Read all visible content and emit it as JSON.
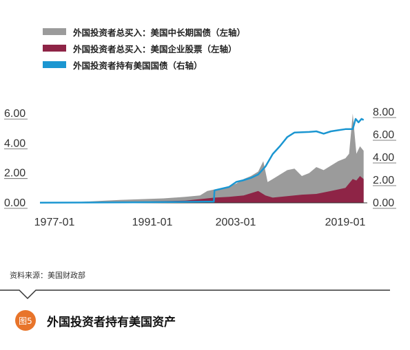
{
  "legend": [
    {
      "label": "外国投资者总买入：美国中长期国债（左轴）",
      "color": "#9b9b9b"
    },
    {
      "label": "外国投资者总买入：美国企业股票（左轴）",
      "color": "#8e2446"
    },
    {
      "label": "外国投资者持有美国国债（右轴）",
      "color": "#1b96d1"
    }
  ],
  "source": "资料来源：美国财政部",
  "figure": {
    "badge": "图5",
    "title": "外国投资者持有美国资产"
  },
  "chart_data": {
    "type": "area",
    "title": "外国投资者持有美国资产",
    "x_ticks": [
      "1977-01",
      "1991-01",
      "2003-01",
      "2019-01"
    ],
    "x_range": [
      1977,
      2022
    ],
    "left_axis": {
      "ticks": [
        "0.00",
        "2.00",
        "4.00",
        "6.00"
      ],
      "ylim": [
        0,
        6.5
      ]
    },
    "right_axis": {
      "ticks": [
        "0.00",
        "2.00",
        "4.00",
        "6.00",
        "8.00"
      ],
      "ylim": [
        0,
        8
      ]
    },
    "series": [
      {
        "name": "外国投资者总买入：美国中长期国债（左轴）",
        "type": "area",
        "axis": "left",
        "color": "#9b9b9b",
        "x": [
          1977,
          1982,
          1986,
          1988,
          1991,
          1994,
          1997,
          1999,
          2000,
          2001,
          2002,
          2003,
          2004,
          2005,
          2006,
          2007,
          2007.7,
          2008.3,
          2009,
          2010,
          2011,
          2012,
          2013,
          2014,
          2015,
          2016,
          2017,
          2018,
          2019,
          2019.5,
          2020,
          2020.5,
          2021,
          2021.5
        ],
        "values": [
          0.02,
          0.05,
          0.15,
          0.2,
          0.25,
          0.3,
          0.4,
          0.5,
          0.8,
          0.9,
          1.0,
          1.1,
          1.3,
          1.6,
          1.8,
          2.1,
          2.8,
          1.4,
          1.6,
          1.9,
          2.2,
          2.3,
          1.8,
          2.0,
          2.4,
          2.2,
          2.5,
          2.8,
          3.0,
          3.3,
          6.0,
          3.3,
          3.8,
          3.5
        ]
      },
      {
        "name": "外国投资者总买入：美国企业股票（左轴）",
        "type": "area",
        "axis": "left",
        "color": "#8e2446",
        "x": [
          1977,
          1986,
          1991,
          1997,
          2000,
          2001,
          2003,
          2005,
          2007,
          2008,
          2009,
          2011,
          2013,
          2015,
          2017,
          2018,
          2019,
          2020,
          2020.5,
          2021,
          2021.5
        ],
        "values": [
          0.01,
          0.05,
          0.08,
          0.15,
          0.3,
          0.35,
          0.4,
          0.5,
          0.8,
          0.5,
          0.35,
          0.45,
          0.55,
          0.6,
          0.8,
          0.9,
          1.0,
          1.6,
          1.5,
          1.8,
          1.6
        ]
      },
      {
        "name": "外国投资者持有美国国债（右轴）",
        "type": "line",
        "axis": "right",
        "color": "#1b96d1",
        "x": [
          1977,
          1990,
          2000,
          2000.9,
          2001,
          2003,
          2004,
          2005,
          2006,
          2007,
          2008,
          2009,
          2010,
          2011,
          2012,
          2014,
          2015,
          2016,
          2017,
          2018,
          2019,
          2020,
          2020.4,
          2020.8,
          2021.2,
          2021.5
        ],
        "values": [
          0.02,
          0.05,
          0.1,
          0.1,
          1.1,
          1.4,
          1.85,
          2.0,
          2.2,
          2.5,
          3.2,
          4.3,
          5.0,
          5.8,
          6.2,
          6.25,
          6.3,
          6.1,
          6.3,
          6.4,
          6.5,
          6.5,
          7.4,
          7.1,
          7.4,
          7.3
        ]
      }
    ]
  }
}
